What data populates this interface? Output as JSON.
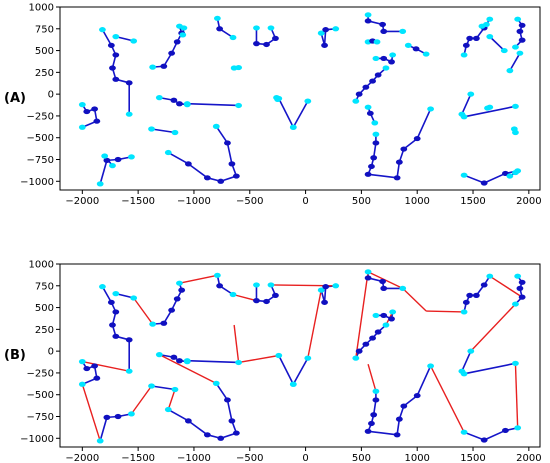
{
  "chart_data": [
    {
      "panel_label": "(A)",
      "type": "scatter",
      "xlim": [
        -2200,
        2100
      ],
      "ylim": [
        -1100,
        1000
      ],
      "xticks": [
        -2000,
        -1500,
        -1000,
        -500,
        0,
        500,
        1000,
        1500,
        2000
      ],
      "yticks": [
        1000,
        750,
        500,
        250,
        0,
        -250,
        -500,
        -750,
        -1000
      ],
      "xtick_labels": [
        "−2000",
        "−1500",
        "−1000",
        "−500",
        "0",
        "500",
        "1000",
        "1500",
        "2000"
      ],
      "ytick_labels": [
        "1000",
        "750",
        "500",
        "250",
        "0",
        "−250",
        "−500",
        "−750",
        "−1000"
      ],
      "node_colors": {
        "start": "#00e5ff",
        "mid": "#1010c0"
      },
      "edge_color": "#1515c8",
      "grid": false,
      "paths": [
        [
          [
            -1820,
            740
          ],
          [
            -1740,
            560
          ],
          [
            -1700,
            450
          ],
          [
            -1730,
            300
          ],
          [
            -1700,
            170
          ],
          [
            -1580,
            130
          ],
          [
            -1580,
            -230
          ]
        ],
        [
          [
            -1700,
            660
          ],
          [
            -1540,
            610
          ]
        ],
        [
          [
            -2000,
            -120
          ],
          [
            -1960,
            -200
          ],
          [
            -1890,
            -170
          ],
          [
            -1870,
            -310
          ],
          [
            -2000,
            -380
          ]
        ],
        [
          [
            -1840,
            -1030
          ],
          [
            -1780,
            -760
          ],
          [
            -1680,
            -750
          ],
          [
            -1560,
            -720
          ]
        ],
        [
          [
            -1800,
            -710
          ],
          [
            -1730,
            -820
          ]
        ],
        [
          [
            -1130,
            780
          ],
          [
            -1110,
            700
          ],
          [
            -1150,
            600
          ],
          [
            -1200,
            470
          ],
          [
            -1270,
            320
          ],
          [
            -1370,
            310
          ]
        ],
        [
          [
            -1100,
            680
          ],
          [
            -1090,
            760
          ]
        ],
        [
          [
            -790,
            870
          ],
          [
            -770,
            750
          ],
          [
            -650,
            650
          ]
        ],
        [
          [
            -1060,
            -120
          ],
          [
            -1130,
            -110
          ],
          [
            -1180,
            -70
          ],
          [
            -1310,
            -40
          ]
        ],
        [
          [
            -1060,
            -110
          ],
          [
            -600,
            -130
          ]
        ],
        [
          [
            -640,
            300
          ],
          [
            -600,
            305
          ]
        ],
        [
          [
            -1380,
            -400
          ],
          [
            -1170,
            -440
          ]
        ],
        [
          [
            -1230,
            -670
          ],
          [
            -1050,
            -800
          ],
          [
            -880,
            -960
          ],
          [
            -760,
            -1000
          ],
          [
            -620,
            -940
          ],
          [
            -660,
            -800
          ],
          [
            -700,
            -560
          ],
          [
            -800,
            -370
          ]
        ],
        [
          [
            -440,
            760
          ],
          [
            -440,
            580
          ],
          [
            -350,
            570
          ],
          [
            -270,
            640
          ],
          [
            -310,
            760
          ]
        ],
        [
          [
            -250,
            -60
          ],
          [
            -260,
            -40
          ]
        ],
        [
          [
            -110,
            -380
          ],
          [
            -240,
            -50
          ]
        ],
        [
          [
            -110,
            -380
          ],
          [
            20,
            -80
          ]
        ],
        [
          [
            140,
            700
          ],
          [
            170,
            560
          ],
          [
            180,
            740
          ],
          [
            270,
            750
          ]
        ],
        [
          [
            560,
            910
          ],
          [
            560,
            840
          ],
          [
            690,
            800
          ],
          [
            700,
            720
          ],
          [
            870,
            720
          ]
        ],
        [
          [
            560,
            600
          ],
          [
            600,
            610
          ],
          [
            640,
            600
          ]
        ],
        [
          [
            630,
            410
          ],
          [
            700,
            410
          ],
          [
            770,
            370
          ],
          [
            780,
            450
          ]
        ],
        [
          [
            720,
            300
          ],
          [
            650,
            220
          ],
          [
            600,
            150
          ],
          [
            540,
            80
          ],
          [
            480,
            0
          ],
          [
            450,
            -80
          ]
        ],
        [
          [
            920,
            560
          ],
          [
            990,
            520
          ],
          [
            1080,
            460
          ]
        ],
        [
          [
            1120,
            -170
          ],
          [
            1000,
            -510
          ],
          [
            880,
            -630
          ],
          [
            840,
            -780
          ],
          [
            820,
            -960
          ],
          [
            560,
            -920
          ],
          [
            590,
            -830
          ],
          [
            610,
            -730
          ],
          [
            630,
            -560
          ],
          [
            630,
            -460
          ]
        ],
        [
          [
            560,
            -150
          ],
          [
            580,
            -220
          ],
          [
            620,
            -330
          ]
        ],
        [
          [
            1420,
            450
          ],
          [
            1440,
            560
          ],
          [
            1470,
            640
          ],
          [
            1530,
            640
          ],
          [
            1600,
            760
          ],
          [
            1650,
            860
          ]
        ],
        [
          [
            1650,
            660
          ],
          [
            1780,
            500
          ]
        ],
        [
          [
            1580,
            780
          ],
          [
            1620,
            800
          ]
        ],
        [
          [
            1900,
            860
          ],
          [
            1940,
            790
          ],
          [
            1920,
            720
          ],
          [
            1940,
            620
          ],
          [
            1880,
            540
          ]
        ],
        [
          [
            1830,
            270
          ],
          [
            1920,
            470
          ]
        ],
        [
          [
            1480,
            0
          ],
          [
            1400,
            -230
          ]
        ],
        [
          [
            1420,
            -260
          ],
          [
            1880,
            -140
          ]
        ],
        [
          [
            1630,
            -160
          ],
          [
            1650,
            -150
          ]
        ],
        [
          [
            1880,
            -440
          ],
          [
            1870,
            -400
          ]
        ],
        [
          [
            1420,
            -930
          ],
          [
            1600,
            -1020
          ],
          [
            1790,
            -910
          ],
          [
            1900,
            -880
          ]
        ],
        [
          [
            1830,
            -940
          ],
          [
            1880,
            -900
          ]
        ]
      ]
    },
    {
      "panel_label": "(B)",
      "type": "scatter",
      "xlim": [
        -2200,
        2100
      ],
      "ylim": [
        -1100,
        1000
      ],
      "xticks": [
        -2000,
        -1500,
        -1000,
        -500,
        0,
        500,
        1000,
        1500,
        2000
      ],
      "yticks": [
        1000,
        750,
        500,
        250,
        0,
        -250,
        -500,
        -750,
        -1000
      ],
      "xtick_labels": [
        "−2000",
        "−1500",
        "−1000",
        "−500",
        "0",
        "500",
        "1000",
        "1500",
        "2000"
      ],
      "ytick_labels": [
        "1000",
        "750",
        "500",
        "250",
        "0",
        "−250",
        "−500",
        "−750",
        "−1000"
      ],
      "node_colors": {
        "start": "#00e5ff",
        "mid": "#1010c0"
      },
      "edge_color": "#1515c8",
      "connector_color": "#e82020",
      "grid": false,
      "paths": [
        [
          [
            -1820,
            740
          ],
          [
            -1740,
            560
          ],
          [
            -1700,
            450
          ],
          [
            -1730,
            300
          ],
          [
            -1700,
            170
          ],
          [
            -1580,
            130
          ],
          [
            -1580,
            -230
          ]
        ],
        [
          [
            -1700,
            660
          ],
          [
            -1540,
            610
          ]
        ],
        [
          [
            -2000,
            -120
          ],
          [
            -1960,
            -200
          ],
          [
            -1890,
            -170
          ],
          [
            -1870,
            -310
          ],
          [
            -2000,
            -380
          ]
        ],
        [
          [
            -1840,
            -1030
          ],
          [
            -1780,
            -760
          ],
          [
            -1680,
            -750
          ],
          [
            -1560,
            -720
          ]
        ],
        [
          [
            -1130,
            780
          ],
          [
            -1110,
            700
          ],
          [
            -1150,
            600
          ],
          [
            -1200,
            470
          ],
          [
            -1270,
            320
          ],
          [
            -1370,
            310
          ]
        ],
        [
          [
            -790,
            870
          ],
          [
            -770,
            750
          ],
          [
            -650,
            650
          ]
        ],
        [
          [
            -1060,
            -120
          ],
          [
            -1130,
            -110
          ],
          [
            -1180,
            -70
          ],
          [
            -1310,
            -40
          ]
        ],
        [
          [
            -1060,
            -110
          ],
          [
            -600,
            -130
          ]
        ],
        [
          [
            -1380,
            -400
          ],
          [
            -1170,
            -440
          ]
        ],
        [
          [
            -1230,
            -670
          ],
          [
            -1050,
            -800
          ],
          [
            -880,
            -960
          ],
          [
            -760,
            -1000
          ],
          [
            -620,
            -940
          ],
          [
            -660,
            -800
          ],
          [
            -700,
            -560
          ],
          [
            -800,
            -370
          ]
        ],
        [
          [
            -440,
            760
          ],
          [
            -440,
            580
          ],
          [
            -350,
            570
          ],
          [
            -270,
            640
          ],
          [
            -310,
            760
          ]
        ],
        [
          [
            -110,
            -380
          ],
          [
            -240,
            -50
          ]
        ],
        [
          [
            -110,
            -380
          ],
          [
            20,
            -80
          ]
        ],
        [
          [
            140,
            700
          ],
          [
            170,
            560
          ],
          [
            180,
            740
          ],
          [
            270,
            750
          ]
        ],
        [
          [
            560,
            910
          ],
          [
            560,
            840
          ],
          [
            690,
            800
          ],
          [
            700,
            720
          ],
          [
            870,
            720
          ]
        ],
        [
          [
            630,
            410
          ],
          [
            700,
            410
          ],
          [
            770,
            370
          ],
          [
            780,
            450
          ]
        ],
        [
          [
            720,
            300
          ],
          [
            650,
            220
          ],
          [
            600,
            150
          ],
          [
            540,
            80
          ],
          [
            480,
            0
          ],
          [
            450,
            -80
          ]
        ],
        [
          [
            1120,
            -170
          ],
          [
            1000,
            -510
          ],
          [
            880,
            -630
          ],
          [
            840,
            -780
          ],
          [
            820,
            -960
          ],
          [
            560,
            -920
          ],
          [
            590,
            -830
          ],
          [
            610,
            -730
          ],
          [
            630,
            -560
          ],
          [
            630,
            -460
          ]
        ],
        [
          [
            1420,
            450
          ],
          [
            1440,
            560
          ],
          [
            1470,
            640
          ],
          [
            1530,
            640
          ],
          [
            1600,
            760
          ],
          [
            1650,
            860
          ]
        ],
        [
          [
            1900,
            860
          ],
          [
            1940,
            790
          ],
          [
            1920,
            720
          ],
          [
            1940,
            620
          ],
          [
            1880,
            540
          ]
        ],
        [
          [
            1480,
            0
          ],
          [
            1400,
            -230
          ]
        ],
        [
          [
            1420,
            -260
          ],
          [
            1880,
            -140
          ]
        ],
        [
          [
            1420,
            -930
          ],
          [
            1600,
            -1020
          ],
          [
            1790,
            -910
          ],
          [
            1900,
            -880
          ]
        ]
      ],
      "connectors": [
        [
          [
            -1540,
            610
          ],
          [
            -1370,
            310
          ]
        ],
        [
          [
            -1130,
            780
          ],
          [
            -790,
            870
          ]
        ],
        [
          [
            -650,
            650
          ],
          [
            -440,
            580
          ]
        ],
        [
          [
            -310,
            760
          ],
          [
            270,
            750
          ]
        ],
        [
          [
            140,
            700
          ],
          [
            20,
            -80
          ]
        ],
        [
          [
            -240,
            -50
          ],
          [
            -600,
            -130
          ]
        ],
        [
          [
            -1310,
            -40
          ],
          [
            -800,
            -370
          ]
        ],
        [
          [
            -1230,
            -670
          ],
          [
            -1170,
            -440
          ]
        ],
        [
          [
            -1380,
            -400
          ],
          [
            -1560,
            -720
          ]
        ],
        [
          [
            -1840,
            -1030
          ],
          [
            -2000,
            -380
          ]
        ],
        [
          [
            -2000,
            -120
          ],
          [
            -1580,
            -230
          ]
        ],
        [
          [
            -640,
            300
          ],
          [
            -600,
            -130
          ]
        ],
        [
          [
            560,
            910
          ],
          [
            450,
            -80
          ]
        ],
        [
          [
            560,
            910
          ],
          [
            870,
            720
          ]
        ],
        [
          [
            870,
            720
          ],
          [
            1080,
            460
          ]
        ],
        [
          [
            1080,
            460
          ],
          [
            1420,
            450
          ]
        ],
        [
          [
            1650,
            860
          ],
          [
            1940,
            620
          ]
        ],
        [
          [
            1880,
            540
          ],
          [
            1480,
            0
          ]
        ],
        [
          [
            1880,
            -140
          ],
          [
            1900,
            -880
          ]
        ],
        [
          [
            1420,
            -930
          ],
          [
            1120,
            -170
          ]
        ],
        [
          [
            630,
            -460
          ],
          [
            560,
            -150
          ]
        ],
        [
          [
            780,
            450
          ],
          [
            720,
            300
          ]
        ]
      ]
    }
  ]
}
